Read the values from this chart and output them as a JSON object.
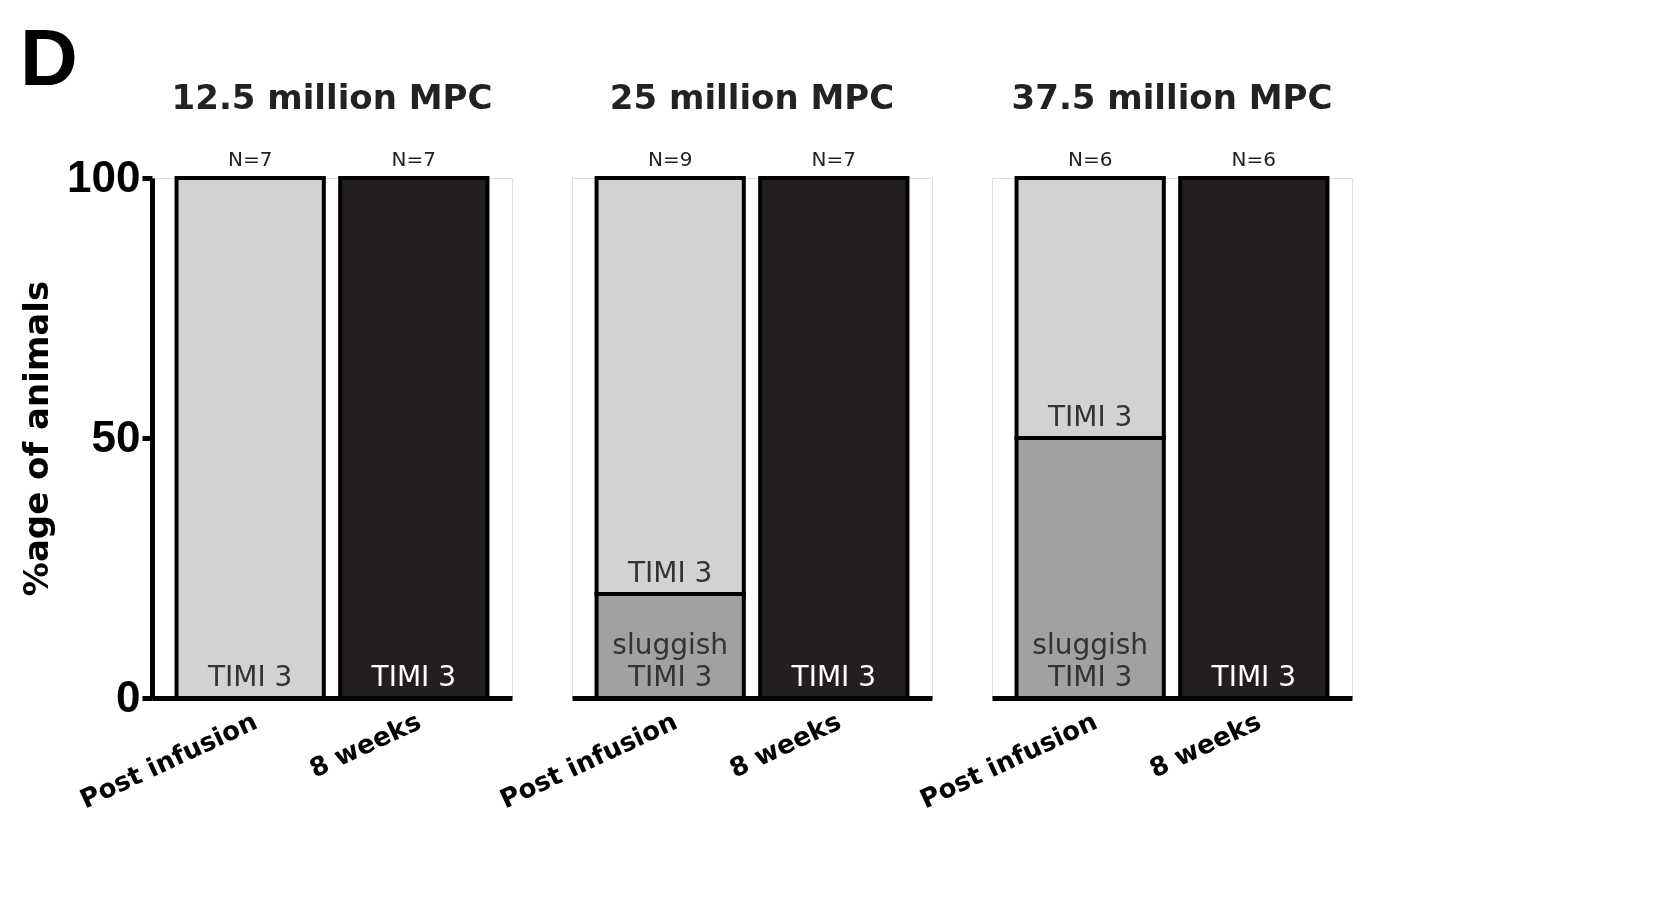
{
  "chart_data": [
    {
      "type": "bar",
      "stacked": true,
      "title": "12.5 million MPC",
      "ylabel": "%age of animals",
      "categories": [
        "Post infusion",
        "8 weeks"
      ],
      "ylim": [
        0,
        100
      ],
      "yticks": [
        0,
        50,
        100
      ],
      "series": [
        {
          "name": "TIMI 3",
          "colors": [
            "#d1d2d4",
            "#231f20"
          ],
          "values": [
            100,
            100
          ]
        }
      ],
      "annotations": [
        "D",
        {
          "text": "N=7",
          "x": "Post infusion",
          "y": 100
        },
        {
          "text": "N=7",
          "x": "8 weeks",
          "y": 100
        }
      ]
    },
    {
      "type": "bar",
      "stacked": true,
      "title": "25 million MPC",
      "categories": [
        "Post infusion",
        "8 weeks"
      ],
      "ylim": [
        0,
        100
      ],
      "tick_labels": "x",
      "series": [
        {
          "name": "sluggish TIMI 3",
          "color": "#a1a1a3",
          "values": [
            20,
            null
          ]
        },
        {
          "name": "TIMI 3",
          "colors": [
            "#d1d2d4",
            "#231f20"
          ],
          "values": [
            80,
            100
          ]
        }
      ],
      "annotations": [
        {
          "text": "N=9",
          "x": "Post infusion",
          "y": 100
        },
        {
          "text": "N=7",
          "x": "8 weeks",
          "y": 100
        }
      ]
    },
    {
      "type": "bar",
      "stacked": true,
      "title": "37.5 million MPC",
      "categories": [
        "Post infusion",
        "8 weeks"
      ],
      "ylim": [
        0,
        100
      ],
      "tick_labels": "x",
      "series": [
        {
          "name": "sluggish TIMI 3",
          "color": "#a1a1a3",
          "values": [
            50,
            null
          ]
        },
        {
          "name": "TIMI 3",
          "colors": [
            "#d1d2d4",
            "#231f20"
          ],
          "values": [
            50,
            100
          ]
        }
      ],
      "annotations": [
        {
          "text": "N=6",
          "x": "Post infusion",
          "y": 100
        },
        {
          "text": "N=6",
          "x": "8 weeks",
          "y": 100
        }
      ]
    }
  ]
}
